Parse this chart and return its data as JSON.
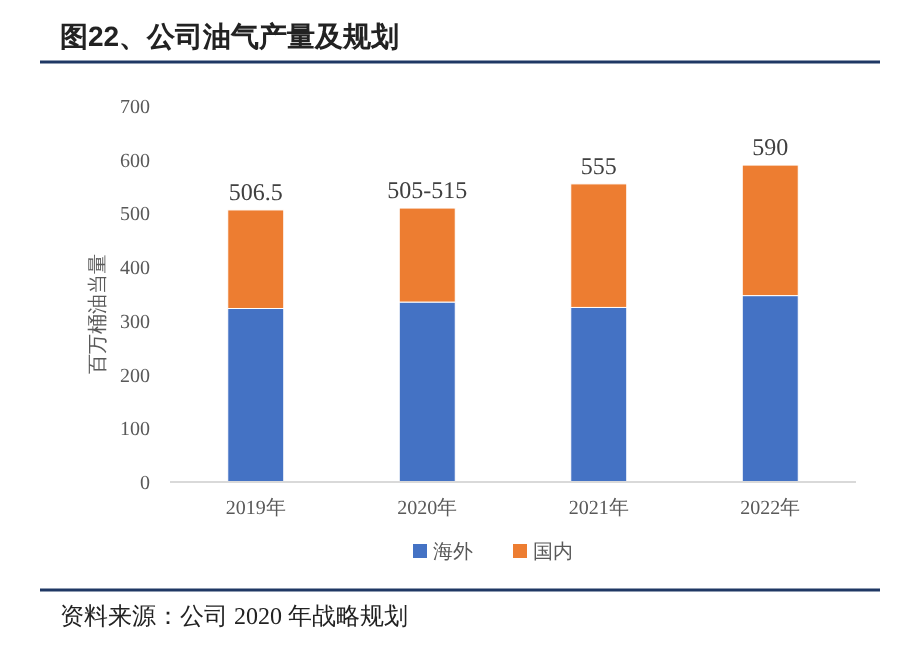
{
  "chart_data": {
    "type": "bar",
    "title": "图22、公司油气产量及规划",
    "ylabel": "百万桶油当量",
    "categories": [
      "2019年",
      "2020年",
      "2021年",
      "2022年"
    ],
    "series": [
      {
        "name": "海外",
        "color": "#4472c4",
        "values": [
          323,
          335,
          325,
          347
        ]
      },
      {
        "name": "国内",
        "color": "#ed7d31",
        "values": [
          183.5,
          175,
          230,
          243
        ]
      }
    ],
    "stacked": true,
    "totals": [
      "506.5",
      "505-515",
      "555",
      "590"
    ],
    "ylim": [
      0,
      700
    ],
    "yticks": [
      0,
      100,
      200,
      300,
      400,
      500,
      600,
      700
    ],
    "grid": false,
    "legend": "bottom",
    "annotations": [
      "资料来源：公司 2020 年战略规划"
    ]
  }
}
